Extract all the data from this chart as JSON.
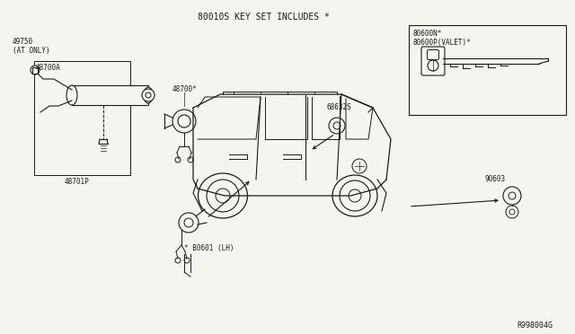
{
  "title": "80010S KEY SET INCLUDES *",
  "bg_color": "#f5f5f0",
  "line_color": "#1a1a1a",
  "text_color": "#1a1a1a",
  "diagram_ref": "R998004G",
  "labels": {
    "top_title": "80010S KEY SET INCLUDES *",
    "part_49750": "49750",
    "part_49750b": "(AT ONLY)",
    "part_48700A": "48700A",
    "part_48701P": "48701P",
    "part_48700": "48700*",
    "part_68632S": "68632S",
    "part_B0600N": "80600N*",
    "part_B0600P": "80600P(VALET)*",
    "part_B0601": "* B0601 (LH)",
    "part_90603": "90603",
    "diagram_num": "R998004G"
  },
  "figsize": [
    6.4,
    3.72
  ],
  "dpi": 100
}
